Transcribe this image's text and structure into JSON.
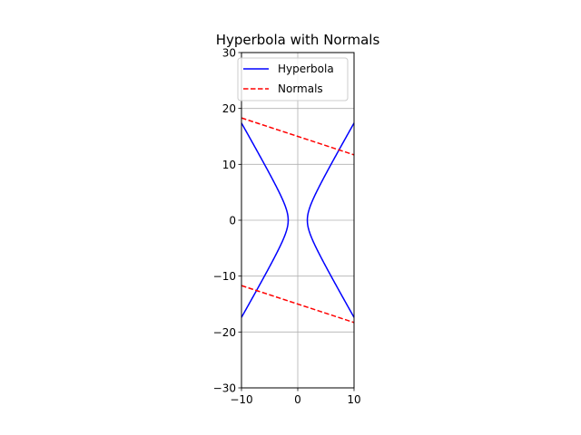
{
  "chart_data": {
    "type": "line",
    "title": "Hyperbola with Normals",
    "xlabel": "",
    "ylabel": "",
    "xlim": [
      -10,
      10
    ],
    "ylim": [
      -30,
      30
    ],
    "xticks": [
      -10,
      0,
      10
    ],
    "yticks": [
      -30,
      -20,
      -10,
      0,
      10,
      20,
      30
    ],
    "xtick_labels": [
      "−10",
      "0",
      "10"
    ],
    "ytick_labels": [
      "−30",
      "−20",
      "−10",
      "0",
      "10",
      "20",
      "30"
    ],
    "grid": true,
    "legend_position": "upper-left",
    "hyperbola": {
      "a": 1.7,
      "b": 3.0
    },
    "normals": [
      {
        "x": [
          -10,
          10
        ],
        "y": [
          18.3,
          11.7
        ]
      },
      {
        "x": [
          -10,
          10
        ],
        "y": [
          -11.7,
          -18.3
        ]
      }
    ],
    "series": [
      {
        "name": "Hyperbola",
        "color": "#0000ff",
        "style": "solid"
      },
      {
        "name": "Normals",
        "color": "#ff0000",
        "style": "dashed"
      }
    ]
  }
}
